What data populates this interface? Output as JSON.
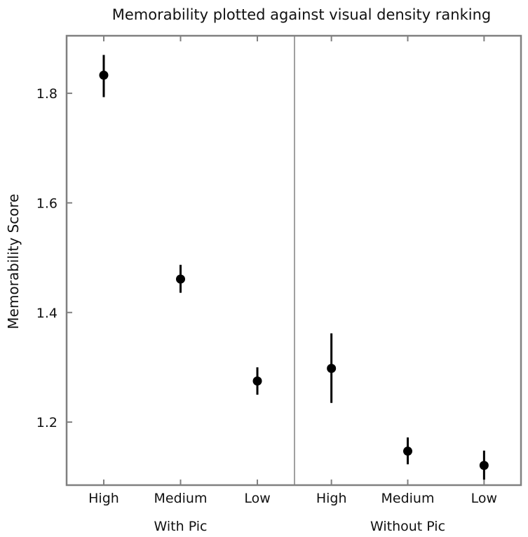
{
  "chart_data": {
    "type": "scatter",
    "title": "Memorability plotted against visual density ranking",
    "ylabel": "Memorability Score",
    "xlabel": "",
    "ylim": [
      1.085,
      1.905
    ],
    "yticks": [
      1.2,
      1.4,
      1.6,
      1.8
    ],
    "ytick_labels": [
      "1.2",
      "1.4",
      "1.6",
      "1.8"
    ],
    "grid": false,
    "legend": "none",
    "error_bars": true,
    "marker_color": "#000000",
    "panels": [
      {
        "name": "With Pic",
        "categories": [
          "High",
          "Medium",
          "Low"
        ],
        "values": [
          1.833,
          1.461,
          1.275
        ],
        "error_low": [
          1.793,
          1.436,
          1.25
        ],
        "error_high": [
          1.87,
          1.487,
          1.3
        ]
      },
      {
        "name": "Without Pic",
        "categories": [
          "High",
          "Medium",
          "Low"
        ],
        "values": [
          1.298,
          1.147,
          1.121
        ],
        "error_low": [
          1.235,
          1.123,
          1.095
        ],
        "error_high": [
          1.362,
          1.172,
          1.148
        ]
      }
    ]
  }
}
